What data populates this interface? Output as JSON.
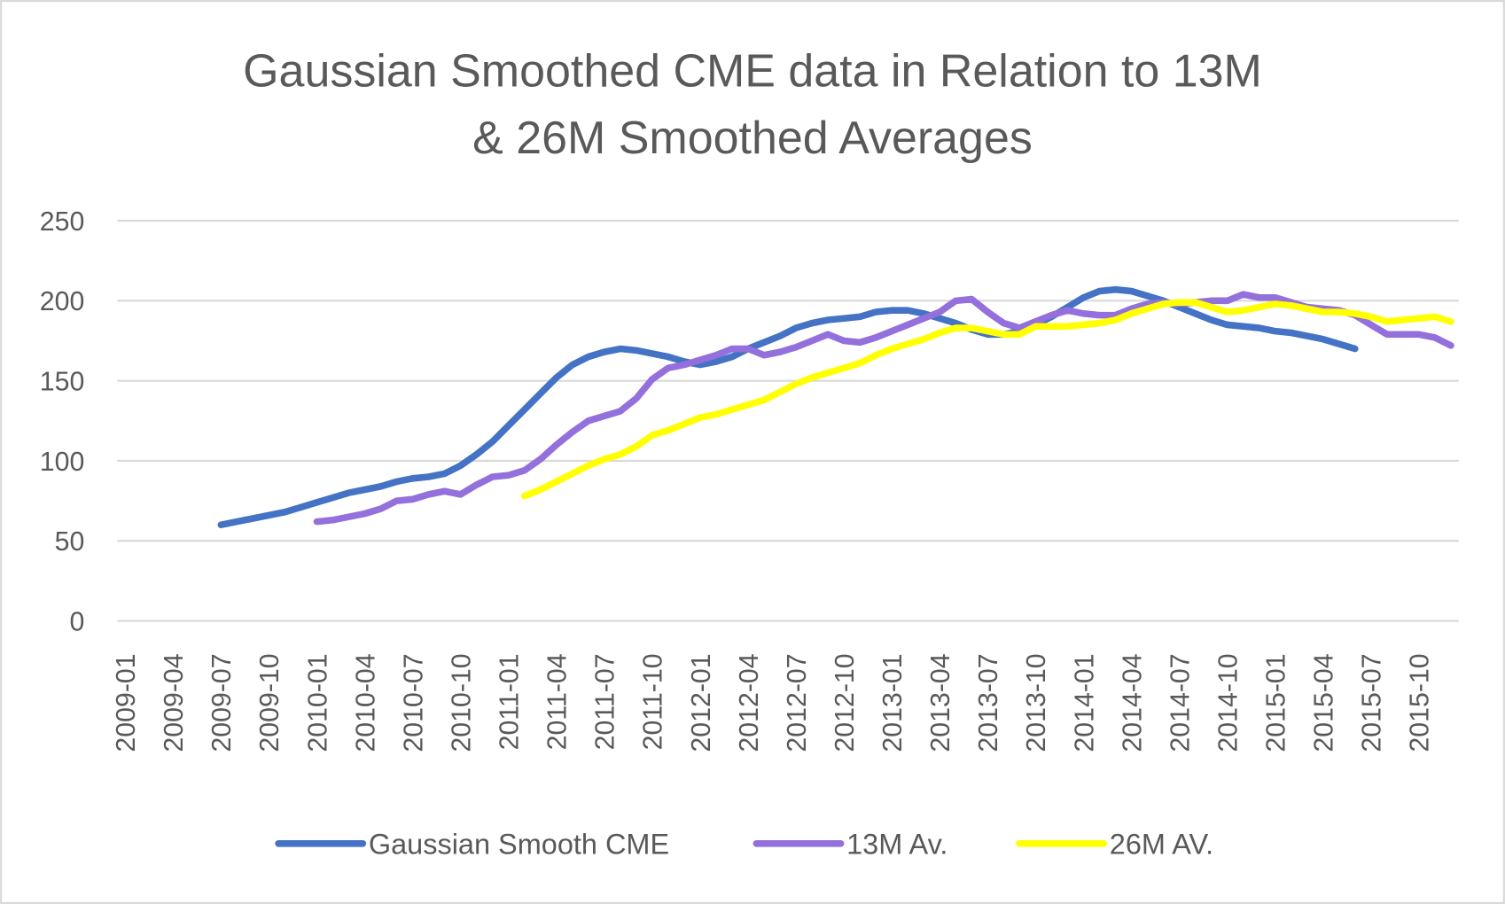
{
  "chart_data": {
    "type": "line",
    "title": [
      "Gaussian Smoothed CME data in Relation to 13M",
      "& 26M Smoothed Averages"
    ],
    "categories": [
      "2009-01",
      null,
      null,
      "2009-04",
      null,
      null,
      "2009-07",
      null,
      null,
      "2009-10",
      null,
      null,
      "2010-01",
      null,
      null,
      "2010-04",
      null,
      null,
      "2010-07",
      null,
      null,
      "2010-10",
      null,
      null,
      "2011-01",
      null,
      null,
      "2011-04",
      null,
      null,
      "2011-07",
      null,
      null,
      "2011-10",
      null,
      null,
      "2012-01",
      null,
      null,
      "2012-04",
      null,
      null,
      "2012-07",
      null,
      null,
      "2012-10",
      null,
      null,
      "2013-01",
      null,
      null,
      "2013-04",
      null,
      null,
      "2013-07",
      null,
      null,
      "2013-10",
      null,
      null,
      "2014-01",
      null,
      null,
      "2014-04",
      null,
      null,
      "2014-07",
      null,
      null,
      "2014-10",
      null,
      null,
      "2015-01",
      null,
      null,
      "2015-04",
      null,
      null,
      "2015-07",
      null,
      null,
      "2015-10",
      null,
      null
    ],
    "series": [
      {
        "name": "Gaussian Smooth CME",
        "color": "#4472c4",
        "values": [
          null,
          null,
          null,
          null,
          null,
          null,
          60,
          62,
          64,
          66,
          68,
          71,
          74,
          77,
          80,
          82,
          84,
          87,
          89,
          90,
          92,
          97,
          104,
          112,
          122,
          132,
          142,
          152,
          160,
          165,
          168,
          170,
          169,
          167,
          165,
          162,
          160,
          162,
          165,
          170,
          174,
          178,
          183,
          186,
          188,
          189,
          190,
          193,
          194,
          194,
          192,
          189,
          186,
          182,
          179,
          179,
          181,
          185,
          190,
          196,
          202,
          206,
          207,
          206,
          203,
          200,
          196,
          192,
          188,
          185,
          184,
          183,
          181,
          180,
          178,
          176,
          173,
          170,
          null,
          null,
          null,
          null,
          null,
          null
        ]
      },
      {
        "name": "13M Av.",
        "color": "#9370db",
        "values": [
          null,
          null,
          null,
          null,
          null,
          null,
          null,
          null,
          null,
          null,
          null,
          null,
          62,
          63,
          65,
          67,
          70,
          75,
          76,
          79,
          81,
          79,
          85,
          90,
          91,
          94,
          101,
          110,
          118,
          125,
          128,
          131,
          139,
          151,
          158,
          160,
          163,
          166,
          170,
          170,
          166,
          168,
          171,
          175,
          179,
          175,
          174,
          177,
          181,
          185,
          189,
          193,
          200,
          201,
          193,
          186,
          183,
          187,
          191,
          194,
          192,
          191,
          191,
          195,
          198,
          199,
          198,
          199,
          200,
          200,
          204,
          202,
          202,
          199,
          196,
          195,
          194,
          191,
          185,
          179,
          179,
          179,
          177,
          172
        ]
      },
      {
        "name": "26M AV.",
        "color": "#ffff00",
        "values": [
          null,
          null,
          null,
          null,
          null,
          null,
          null,
          null,
          null,
          null,
          null,
          null,
          null,
          null,
          null,
          null,
          null,
          null,
          null,
          null,
          null,
          null,
          null,
          null,
          null,
          78,
          82,
          87,
          92,
          97,
          101,
          104,
          109,
          116,
          119,
          123,
          127,
          129,
          132,
          135,
          138,
          143,
          148,
          152,
          155,
          158,
          161,
          166,
          170,
          173,
          176,
          180,
          183,
          183,
          181,
          179,
          179,
          184,
          184,
          184,
          185,
          186,
          188,
          192,
          195,
          198,
          199,
          199,
          196,
          193,
          194,
          196,
          198,
          197,
          195,
          193,
          193,
          192,
          190,
          187,
          188,
          189,
          190,
          187
        ]
      }
    ],
    "ylim": [
      0,
      250
    ],
    "yticks": [
      0,
      50,
      100,
      150,
      200,
      250
    ],
    "grid": true,
    "legend": "bottom"
  }
}
